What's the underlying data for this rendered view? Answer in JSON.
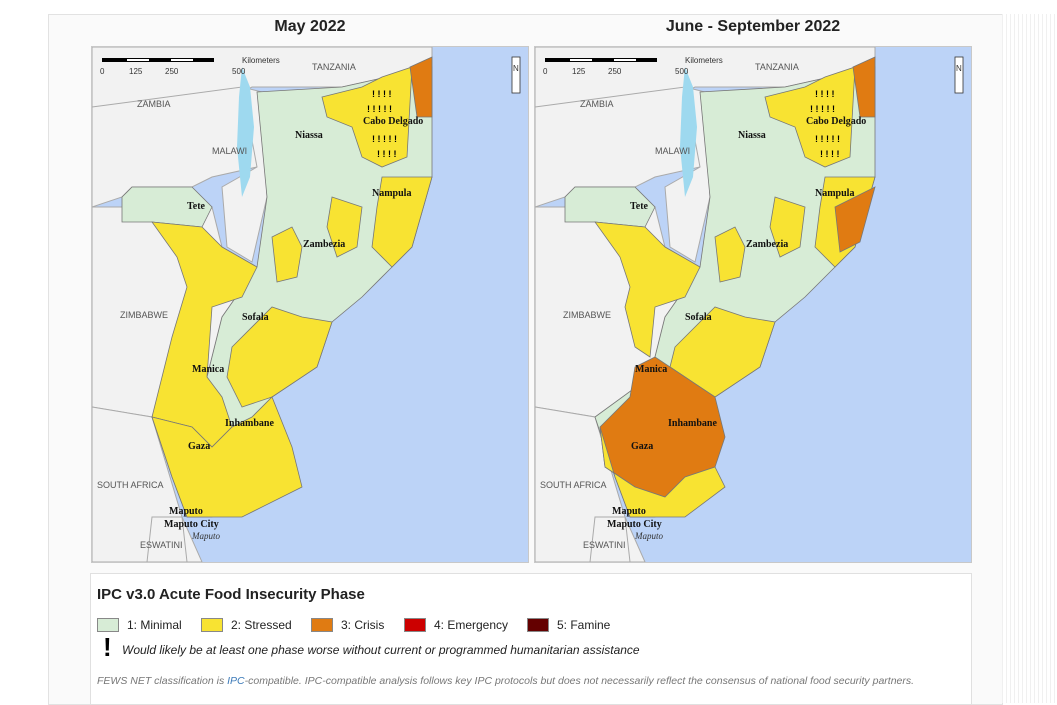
{
  "maps": [
    {
      "title": "May 2022",
      "scale": {
        "ticks": [
          "0",
          "125",
          "250",
          "500"
        ],
        "unit": "Kilometers"
      },
      "countries": [
        "TANZANIA",
        "ZAMBIA",
        "MALAWI",
        "ZIMBABWE",
        "SOUTH AFRICA",
        "ESWATINI"
      ],
      "provinces": [
        "Niassa",
        "Cabo Delgado",
        "Nampula",
        "Tete",
        "Zambezia",
        "Sofala",
        "Manica",
        "Inhambane",
        "Gaza",
        "Maputo",
        "Maputo City"
      ],
      "city": "Maputo",
      "phases_shown": [
        "1: Minimal",
        "2: Stressed",
        "3: Crisis"
      ]
    },
    {
      "title": "June - September 2022",
      "scale": {
        "ticks": [
          "0",
          "125",
          "250",
          "500"
        ],
        "unit": "Kilometers"
      },
      "countries": [
        "TANZANIA",
        "ZAMBIA",
        "MALAWI",
        "ZIMBABWE",
        "SOUTH AFRICA",
        "ESWATINI"
      ],
      "provinces": [
        "Niassa",
        "Cabo Delgado",
        "Nampula",
        "Tete",
        "Zambezia",
        "Sofala",
        "Manica",
        "Inhambane",
        "Gaza",
        "Maputo",
        "Maputo City"
      ],
      "city": "Maputo",
      "phases_shown": [
        "1: Minimal",
        "2: Stressed",
        "3: Crisis"
      ]
    }
  ],
  "legend": {
    "title": "IPC v3.0 Acute Food Insecurity Phase",
    "phases": [
      {
        "label": "1: Minimal",
        "color": "#d7ecd6"
      },
      {
        "label": "2: Stressed",
        "color": "#f8e332"
      },
      {
        "label": "3: Crisis",
        "color": "#e07b12"
      },
      {
        "label": "4: Emergency",
        "color": "#cc0000"
      },
      {
        "label": "5: Famine",
        "color": "#640000"
      }
    ],
    "assistance_symbol": "!",
    "assistance_note": "Would likely be at least one phase worse without current or programmed humanitarian assistance",
    "footnote_prefix": "FEWS NET classification is ",
    "footnote_link": "IPC",
    "footnote_rest": "-compatible. IPC-compatible analysis follows key IPC protocols but does not necessarily reflect the consensus of national food security partners."
  },
  "colors": {
    "ocean": "#bcd3f7",
    "land_other": "#f2f2f2",
    "lake": "#9ed9ef",
    "border": "#888888"
  }
}
